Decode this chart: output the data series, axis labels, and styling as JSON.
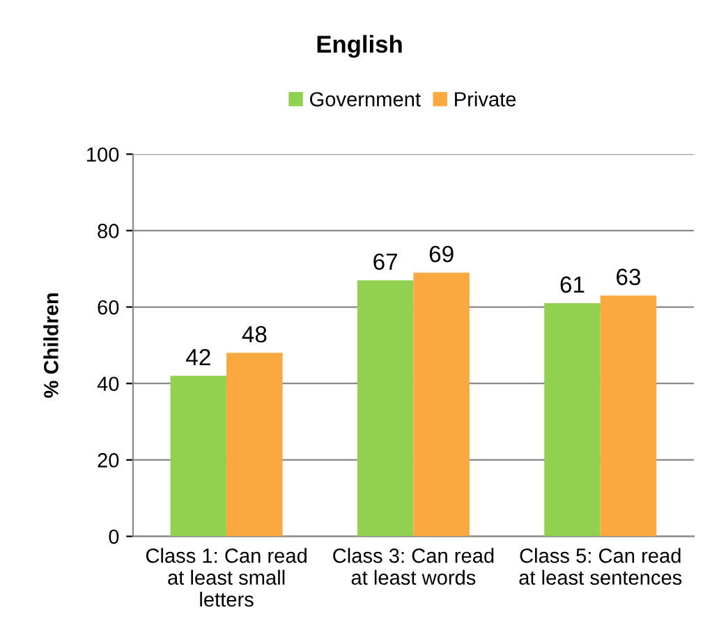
{
  "chart_data": {
    "type": "bar",
    "title": "English",
    "ylabel": "% Children",
    "categories": [
      "Class 1: Can read\nat least small\nletters",
      "Class 3: Can read\nat least words",
      "Class 5: Can read\nat least sentences"
    ],
    "series": [
      {
        "name": "Government",
        "color": "#92d050",
        "values": [
          42,
          67,
          61
        ]
      },
      {
        "name": "Private",
        "color": "#f9a93f",
        "values": [
          48,
          69,
          63
        ]
      }
    ],
    "ylim": [
      0,
      100
    ],
    "yticks": [
      0,
      20,
      40,
      60,
      80,
      100
    ],
    "grid": "y",
    "legend": "top",
    "data_labels": true
  }
}
